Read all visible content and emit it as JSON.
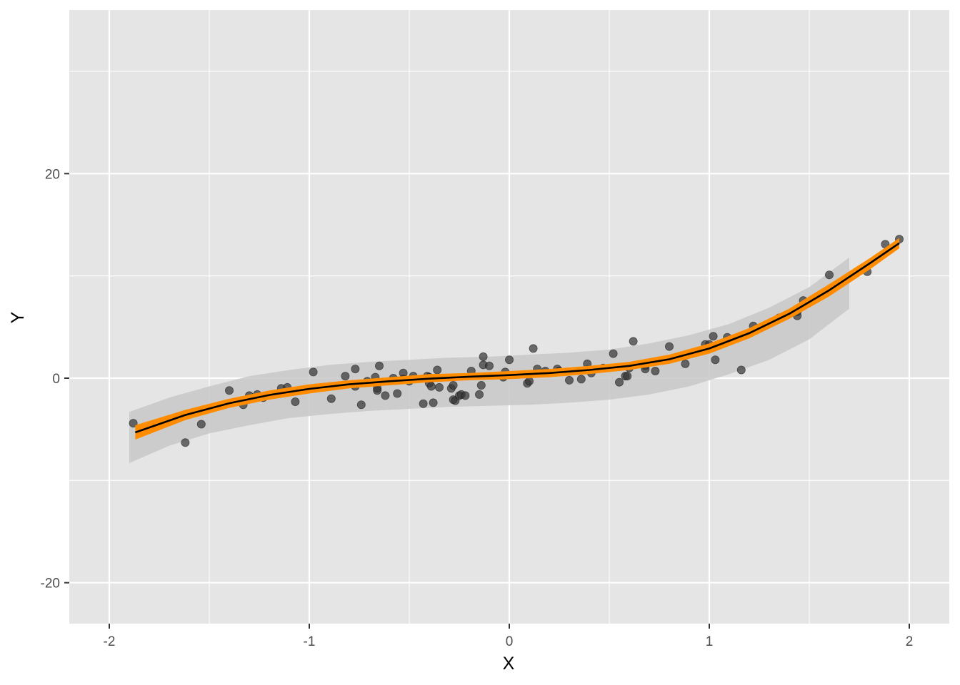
{
  "chart_data": {
    "type": "scatter",
    "title": "",
    "xlabel": "X",
    "ylabel": "Y",
    "xlim": [
      -2.2,
      2.2
    ],
    "ylim": [
      -24,
      36
    ],
    "x_ticks": [
      -2,
      -1,
      0,
      1,
      2
    ],
    "x_tick_labels": [
      "-2",
      "-1",
      "0",
      "1",
      "2"
    ],
    "y_ticks": [
      -20,
      0,
      20
    ],
    "y_tick_labels": [
      "-20",
      "0",
      "20"
    ],
    "x_minor_ticks": [
      -1.5,
      -0.5,
      0.5,
      1.5
    ],
    "y_minor_ticks": [
      -10,
      10,
      30
    ],
    "grid": true,
    "legend": "none",
    "colors": {
      "panel": "#e5e5e5",
      "grid": "#ffffff",
      "points": "#333333",
      "fit_line": "#000000",
      "fit_band": "#ff8c00",
      "prediction_band": "#c8c8c8"
    },
    "series": [
      {
        "type": "points",
        "points": [
          [
            -1.88,
            -4.4
          ],
          [
            -1.62,
            -6.3
          ],
          [
            -1.54,
            -4.5
          ],
          [
            -1.4,
            -1.2
          ],
          [
            -1.33,
            -2.6
          ],
          [
            -1.3,
            -1.7
          ],
          [
            -1.26,
            -1.6
          ],
          [
            -1.23,
            -1.9
          ],
          [
            -1.14,
            -1.0
          ],
          [
            -1.11,
            -0.9
          ],
          [
            -1.07,
            -2.3
          ],
          [
            -0.98,
            0.6
          ],
          [
            -0.89,
            -2.0
          ],
          [
            -0.82,
            0.2
          ],
          [
            -0.77,
            -0.8
          ],
          [
            -0.77,
            0.9
          ],
          [
            -0.74,
            -2.6
          ],
          [
            -0.71,
            -0.3
          ],
          [
            -0.67,
            0.1
          ],
          [
            -0.66,
            -1.0
          ],
          [
            -0.66,
            -1.2
          ],
          [
            -0.65,
            1.2
          ],
          [
            -0.62,
            -1.7
          ],
          [
            -0.58,
            0.0
          ],
          [
            -0.56,
            -1.5
          ],
          [
            -0.53,
            0.5
          ],
          [
            -0.53,
            -0.1
          ],
          [
            -0.5,
            -0.3
          ],
          [
            -0.48,
            0.2
          ],
          [
            -0.43,
            -2.5
          ],
          [
            -0.41,
            0.2
          ],
          [
            -0.4,
            0.1
          ],
          [
            -0.4,
            -0.5
          ],
          [
            -0.39,
            -0.8
          ],
          [
            -0.38,
            -2.4
          ],
          [
            -0.36,
            0.8
          ],
          [
            -0.35,
            -0.9
          ],
          [
            -0.29,
            -1.0
          ],
          [
            -0.28,
            -2.1
          ],
          [
            -0.28,
            -0.7
          ],
          [
            -0.27,
            -2.2
          ],
          [
            -0.25,
            -1.7
          ],
          [
            -0.24,
            -1.6
          ],
          [
            -0.22,
            -1.7
          ],
          [
            -0.19,
            0.7
          ],
          [
            -0.15,
            -1.6
          ],
          [
            -0.14,
            -0.7
          ],
          [
            -0.13,
            1.3
          ],
          [
            -0.13,
            2.1
          ],
          [
            -0.1,
            1.2
          ],
          [
            -0.03,
            0.1
          ],
          [
            -0.02,
            0.6
          ],
          [
            0.0,
            1.8
          ],
          [
            0.09,
            -0.5
          ],
          [
            0.1,
            -0.3
          ],
          [
            0.12,
            2.9
          ],
          [
            0.14,
            0.9
          ],
          [
            0.18,
            0.7
          ],
          [
            0.24,
            0.9
          ],
          [
            0.25,
            0.7
          ],
          [
            0.3,
            -0.2
          ],
          [
            0.36,
            -0.1
          ],
          [
            0.39,
            1.4
          ],
          [
            0.39,
            0.8
          ],
          [
            0.41,
            0.5
          ],
          [
            0.47,
            1.0
          ],
          [
            0.52,
            2.4
          ],
          [
            0.55,
            -0.4
          ],
          [
            0.58,
            0.2
          ],
          [
            0.59,
            0.2
          ],
          [
            0.6,
            1.0
          ],
          [
            0.62,
            3.6
          ],
          [
            0.68,
            1.2
          ],
          [
            0.68,
            0.9
          ],
          [
            0.73,
            0.7
          ],
          [
            0.8,
            3.1
          ],
          [
            0.88,
            1.4
          ],
          [
            0.98,
            3.3
          ],
          [
            1.0,
            3.3
          ],
          [
            1.02,
            4.1
          ],
          [
            1.02,
            3.0
          ],
          [
            1.03,
            1.8
          ],
          [
            1.03,
            3.1
          ],
          [
            1.09,
            4.0
          ],
          [
            1.16,
            0.8
          ],
          [
            1.22,
            5.1
          ],
          [
            1.35,
            5.9
          ],
          [
            1.44,
            6.1
          ],
          [
            1.44,
            6.5
          ],
          [
            1.47,
            7.6
          ],
          [
            1.6,
            10.1
          ],
          [
            1.79,
            10.4
          ],
          [
            1.88,
            13.1
          ],
          [
            1.95,
            13.6
          ]
        ]
      },
      {
        "type": "prediction_band",
        "x": [
          -1.9,
          -1.7,
          -1.5,
          -1.3,
          -1.1,
          -0.9,
          -0.7,
          -0.5,
          -0.3,
          -0.1,
          0.1,
          0.3,
          0.5,
          0.7,
          0.9,
          1.1,
          1.3,
          1.5,
          1.7
        ],
        "lower": [
          -8.3,
          -6.6,
          -5.4,
          -4.6,
          -3.9,
          -3.5,
          -3.2,
          -3.0,
          -2.8,
          -2.7,
          -2.6,
          -2.4,
          -2.1,
          -1.6,
          -0.8,
          0.4,
          1.8,
          3.8,
          6.8
        ],
        "upper": [
          -3.3,
          -1.9,
          -0.8,
          0.2,
          0.8,
          1.3,
          1.6,
          1.8,
          2.0,
          2.1,
          2.3,
          2.5,
          2.8,
          3.4,
          4.2,
          5.3,
          6.9,
          8.9,
          11.8
        ]
      },
      {
        "type": "confidence_band",
        "x": [
          -1.87,
          -1.62,
          -1.4,
          -1.2,
          -1.0,
          -0.8,
          -0.6,
          -0.4,
          -0.2,
          0.0,
          0.2,
          0.4,
          0.6,
          0.8,
          1.0,
          1.2,
          1.4,
          1.6,
          1.8,
          1.95
        ],
        "lower": [
          -6.0,
          -4.1,
          -2.9,
          -2.1,
          -1.5,
          -1.0,
          -0.7,
          -0.4,
          -0.2,
          -0.1,
          0.1,
          0.4,
          0.8,
          1.4,
          2.4,
          3.9,
          5.8,
          8.0,
          10.6,
          12.7
        ],
        "upper": [
          -4.6,
          -3.1,
          -2.0,
          -1.2,
          -0.6,
          -0.2,
          0.1,
          0.4,
          0.5,
          0.7,
          0.9,
          1.2,
          1.6,
          2.3,
          3.4,
          4.9,
          6.8,
          9.2,
          11.7,
          13.7
        ]
      },
      {
        "type": "fit_line",
        "x": [
          -1.87,
          -1.62,
          -1.4,
          -1.2,
          -1.0,
          -0.8,
          -0.6,
          -0.4,
          -0.2,
          0.0,
          0.2,
          0.4,
          0.6,
          0.8,
          1.0,
          1.2,
          1.4,
          1.6,
          1.8,
          1.95
        ],
        "y": [
          -5.3,
          -3.6,
          -2.45,
          -1.65,
          -1.05,
          -0.6,
          -0.3,
          -0.05,
          0.15,
          0.3,
          0.5,
          0.8,
          1.2,
          1.85,
          2.9,
          4.4,
          6.3,
          8.6,
          11.2,
          13.2
        ]
      }
    ]
  }
}
